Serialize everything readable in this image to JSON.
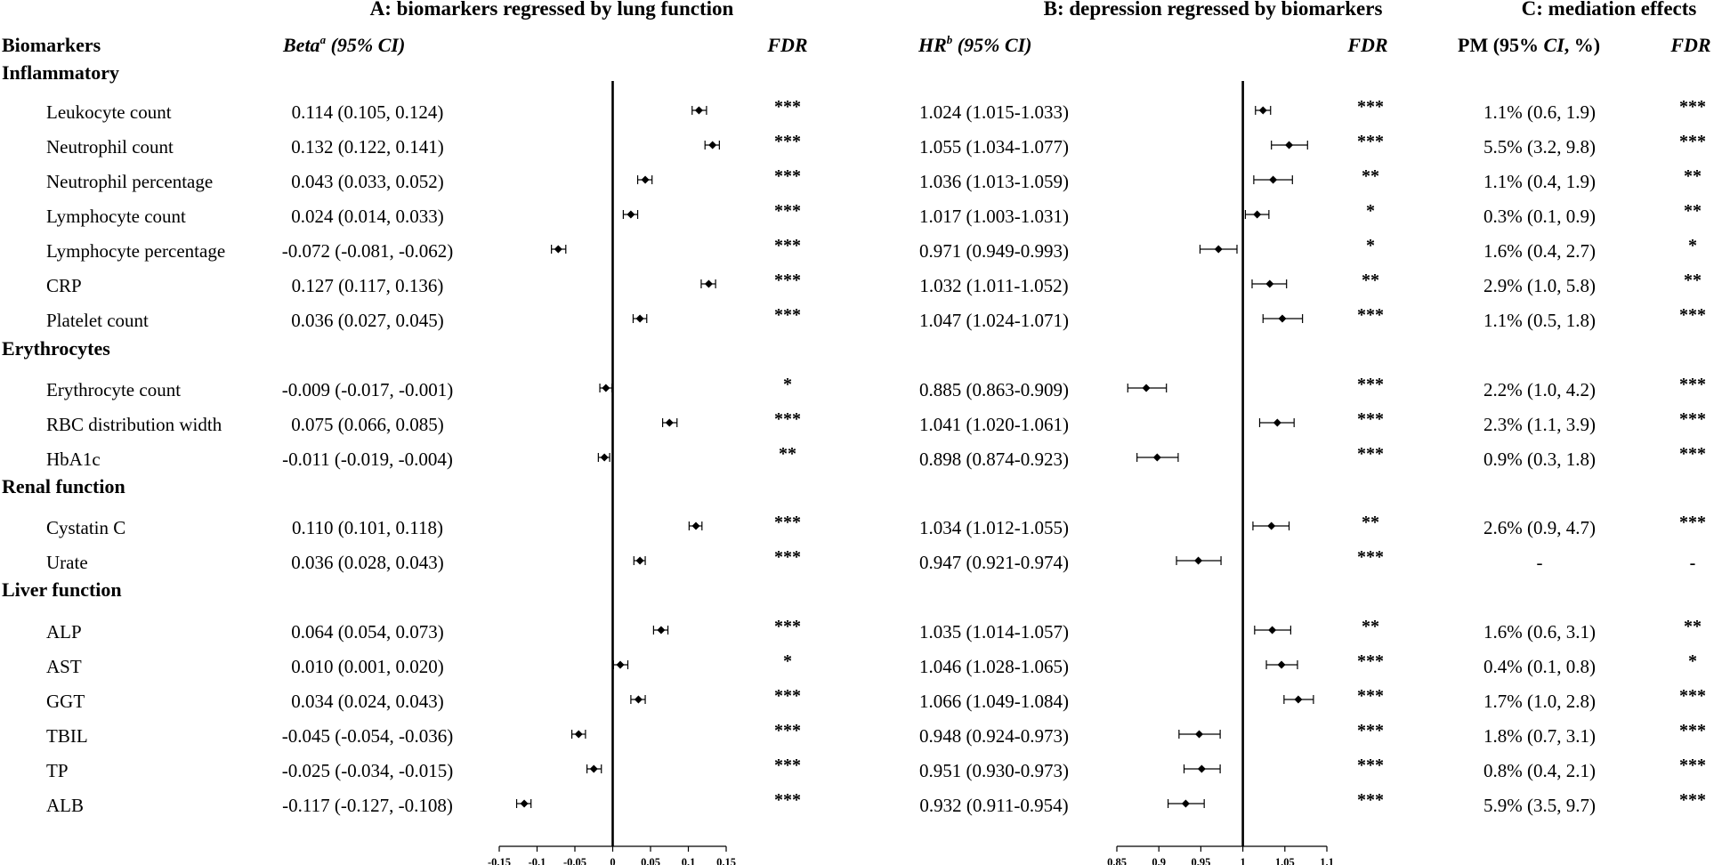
{
  "panels": {
    "A": "A: biomarkers regressed by lung function",
    "B": "B: depression regressed by biomarkers",
    "C": "C: mediation effects"
  },
  "headers": {
    "biomarkers": "Biomarkers",
    "beta_main": "Beta",
    "beta_sup": "a",
    "beta_ci": " (95% CI)",
    "fdr": "FDR",
    "hr_main": "HR",
    "hr_sup": "b",
    "hr_ci": " (95% CI)",
    "pm_main": "PM (95% ",
    "pm_ci": "CI",
    "pm_end": ", %)"
  },
  "chart_data": {
    "type": "forest",
    "groups": [
      "Inflammatory",
      "Erythrocytes",
      "Renal function",
      "Liver function"
    ],
    "rows": [
      {
        "group": 0,
        "name": "Leukocyte count",
        "beta_text": "0.114 (0.105, 0.124)",
        "beta": 0.114,
        "beta_lo": 0.105,
        "beta_hi": 0.124,
        "fdr_a": "***",
        "hr_text": "1.024 (1.015-1.033)",
        "hr": 1.024,
        "hr_lo": 1.015,
        "hr_hi": 1.033,
        "fdr_b": "***",
        "pm_text": "1.1% (0.6, 1.9)",
        "fdr_c": "***"
      },
      {
        "group": 0,
        "name": "Neutrophil count",
        "beta_text": "0.132 (0.122, 0.141)",
        "beta": 0.132,
        "beta_lo": 0.122,
        "beta_hi": 0.141,
        "fdr_a": "***",
        "hr_text": "1.055 (1.034-1.077)",
        "hr": 1.055,
        "hr_lo": 1.034,
        "hr_hi": 1.077,
        "fdr_b": "***",
        "pm_text": "5.5% (3.2, 9.8)",
        "fdr_c": "***"
      },
      {
        "group": 0,
        "name": "Neutrophil percentage",
        "beta_text": "0.043 (0.033, 0.052)",
        "beta": 0.043,
        "beta_lo": 0.033,
        "beta_hi": 0.052,
        "fdr_a": "***",
        "hr_text": "1.036 (1.013-1.059)",
        "hr": 1.036,
        "hr_lo": 1.013,
        "hr_hi": 1.059,
        "fdr_b": "**",
        "pm_text": "1.1% (0.4, 1.9)",
        "fdr_c": "**"
      },
      {
        "group": 0,
        "name": "Lymphocyte count",
        "beta_text": "0.024 (0.014, 0.033)",
        "beta": 0.024,
        "beta_lo": 0.014,
        "beta_hi": 0.033,
        "fdr_a": "***",
        "hr_text": "1.017 (1.003-1.031)",
        "hr": 1.017,
        "hr_lo": 1.003,
        "hr_hi": 1.031,
        "fdr_b": "*",
        "pm_text": "0.3% (0.1, 0.9)",
        "fdr_c": "**"
      },
      {
        "group": 0,
        "name": "Lymphocyte percentage",
        "beta_text": "-0.072 (-0.081, -0.062)",
        "beta": -0.072,
        "beta_lo": -0.081,
        "beta_hi": -0.062,
        "fdr_a": "***",
        "hr_text": "0.971 (0.949-0.993)",
        "hr": 0.971,
        "hr_lo": 0.949,
        "hr_hi": 0.993,
        "fdr_b": "*",
        "pm_text": "1.6% (0.4, 2.7)",
        "fdr_c": "*"
      },
      {
        "group": 0,
        "name": "CRP",
        "beta_text": "0.127 (0.117, 0.136)",
        "beta": 0.127,
        "beta_lo": 0.117,
        "beta_hi": 0.136,
        "fdr_a": "***",
        "hr_text": "1.032 (1.011-1.052)",
        "hr": 1.032,
        "hr_lo": 1.011,
        "hr_hi": 1.052,
        "fdr_b": "**",
        "pm_text": "2.9% (1.0, 5.8)",
        "fdr_c": "**"
      },
      {
        "group": 0,
        "name": "Platelet count",
        "beta_text": "0.036 (0.027, 0.045)",
        "beta": 0.036,
        "beta_lo": 0.027,
        "beta_hi": 0.045,
        "fdr_a": "***",
        "hr_text": "1.047 (1.024-1.071)",
        "hr": 1.047,
        "hr_lo": 1.024,
        "hr_hi": 1.071,
        "fdr_b": "***",
        "pm_text": "1.1% (0.5, 1.8)",
        "fdr_c": "***"
      },
      {
        "group": 1,
        "name": "Erythrocyte count",
        "beta_text": "-0.009 (-0.017, -0.001)",
        "beta": -0.009,
        "beta_lo": -0.017,
        "beta_hi": -0.001,
        "fdr_a": "*",
        "hr_text": "0.885 (0.863-0.909)",
        "hr": 0.885,
        "hr_lo": 0.863,
        "hr_hi": 0.909,
        "fdr_b": "***",
        "pm_text": "2.2% (1.0, 4.2)",
        "fdr_c": "***"
      },
      {
        "group": 1,
        "name": "RBC distribution width",
        "beta_text": "0.075 (0.066, 0.085)",
        "beta": 0.075,
        "beta_lo": 0.066,
        "beta_hi": 0.085,
        "fdr_a": "***",
        "hr_text": "1.041 (1.020-1.061)",
        "hr": 1.041,
        "hr_lo": 1.02,
        "hr_hi": 1.061,
        "fdr_b": "***",
        "pm_text": "2.3% (1.1, 3.9)",
        "fdr_c": "***"
      },
      {
        "group": 1,
        "name": "HbA1c",
        "beta_text": "-0.011 (-0.019, -0.004)",
        "beta": -0.011,
        "beta_lo": -0.019,
        "beta_hi": -0.004,
        "fdr_a": "**",
        "hr_text": "0.898 (0.874-0.923)",
        "hr": 0.898,
        "hr_lo": 0.874,
        "hr_hi": 0.923,
        "fdr_b": "***",
        "pm_text": "0.9% (0.3, 1.8)",
        "fdr_c": "***"
      },
      {
        "group": 2,
        "name": "Cystatin C",
        "beta_text": "0.110 (0.101, 0.118)",
        "beta": 0.11,
        "beta_lo": 0.101,
        "beta_hi": 0.118,
        "fdr_a": "***",
        "hr_text": "1.034 (1.012-1.055)",
        "hr": 1.034,
        "hr_lo": 1.012,
        "hr_hi": 1.055,
        "fdr_b": "**",
        "pm_text": "2.6% (0.9, 4.7)",
        "fdr_c": "***"
      },
      {
        "group": 2,
        "name": "Urate",
        "beta_text": "0.036 (0.028, 0.043)",
        "beta": 0.036,
        "beta_lo": 0.028,
        "beta_hi": 0.043,
        "fdr_a": "***",
        "hr_text": "0.947 (0.921-0.974)",
        "hr": 0.947,
        "hr_lo": 0.921,
        "hr_hi": 0.974,
        "fdr_b": "***",
        "pm_text": "-",
        "fdr_c": "-"
      },
      {
        "group": 3,
        "name": "ALP",
        "beta_text": "0.064 (0.054, 0.073)",
        "beta": 0.064,
        "beta_lo": 0.054,
        "beta_hi": 0.073,
        "fdr_a": "***",
        "hr_text": "1.035 (1.014-1.057)",
        "hr": 1.035,
        "hr_lo": 1.014,
        "hr_hi": 1.057,
        "fdr_b": "**",
        "pm_text": "1.6% (0.6, 3.1)",
        "fdr_c": "**"
      },
      {
        "group": 3,
        "name": "AST",
        "beta_text": "0.010 (0.001, 0.020)",
        "beta": 0.01,
        "beta_lo": 0.001,
        "beta_hi": 0.02,
        "fdr_a": "*",
        "hr_text": "1.046 (1.028-1.065)",
        "hr": 1.046,
        "hr_lo": 1.028,
        "hr_hi": 1.065,
        "fdr_b": "***",
        "pm_text": "0.4% (0.1, 0.8)",
        "fdr_c": "*"
      },
      {
        "group": 3,
        "name": "GGT",
        "beta_text": "0.034 (0.024, 0.043)",
        "beta": 0.034,
        "beta_lo": 0.024,
        "beta_hi": 0.043,
        "fdr_a": "***",
        "hr_text": "1.066 (1.049-1.084)",
        "hr": 1.066,
        "hr_lo": 1.049,
        "hr_hi": 1.084,
        "fdr_b": "***",
        "pm_text": "1.7% (1.0, 2.8)",
        "fdr_c": "***"
      },
      {
        "group": 3,
        "name": "TBIL",
        "beta_text": "-0.045 (-0.054, -0.036)",
        "beta": -0.045,
        "beta_lo": -0.054,
        "beta_hi": -0.036,
        "fdr_a": "***",
        "hr_text": "0.948 (0.924-0.973)",
        "hr": 0.948,
        "hr_lo": 0.924,
        "hr_hi": 0.973,
        "fdr_b": "***",
        "pm_text": "1.8% (0.7, 3.1)",
        "fdr_c": "***"
      },
      {
        "group": 3,
        "name": "TP",
        "beta_text": "-0.025 (-0.034, -0.015)",
        "beta": -0.025,
        "beta_lo": -0.034,
        "beta_hi": -0.015,
        "fdr_a": "***",
        "hr_text": "0.951 (0.930-0.973)",
        "hr": 0.951,
        "hr_lo": 0.93,
        "hr_hi": 0.973,
        "fdr_b": "***",
        "pm_text": "0.8% (0.4, 2.1)",
        "fdr_c": "***"
      },
      {
        "group": 3,
        "name": "ALB",
        "beta_text": "-0.117 (-0.127, -0.108)",
        "beta": -0.117,
        "beta_lo": -0.127,
        "beta_hi": -0.108,
        "fdr_a": "***",
        "hr_text": "0.932 (0.911-0.954)",
        "hr": 0.932,
        "hr_lo": 0.911,
        "hr_hi": 0.954,
        "fdr_b": "***",
        "pm_text": "5.9% (3.5, 9.7)",
        "fdr_c": "***"
      }
    ],
    "axis_a": {
      "ticks": [
        -0.15,
        -0.1,
        -0.05,
        0,
        0.05,
        0.1,
        0.15
      ],
      "tick_labels": [
        "-0.15",
        "-0.1",
        "-0.05",
        "0",
        "0.05",
        "0.1",
        "0.15"
      ],
      "xlim": [
        -0.15,
        0.15
      ],
      "ref": 0
    },
    "axis_b": {
      "ticks": [
        0.85,
        0.9,
        0.95,
        1,
        1.05,
        1.1
      ],
      "tick_labels": [
        "0.85",
        "0.9",
        "0.95",
        "1",
        "1.05",
        "1.1"
      ],
      "xlim": [
        0.85,
        1.1
      ],
      "ref": 1
    }
  }
}
